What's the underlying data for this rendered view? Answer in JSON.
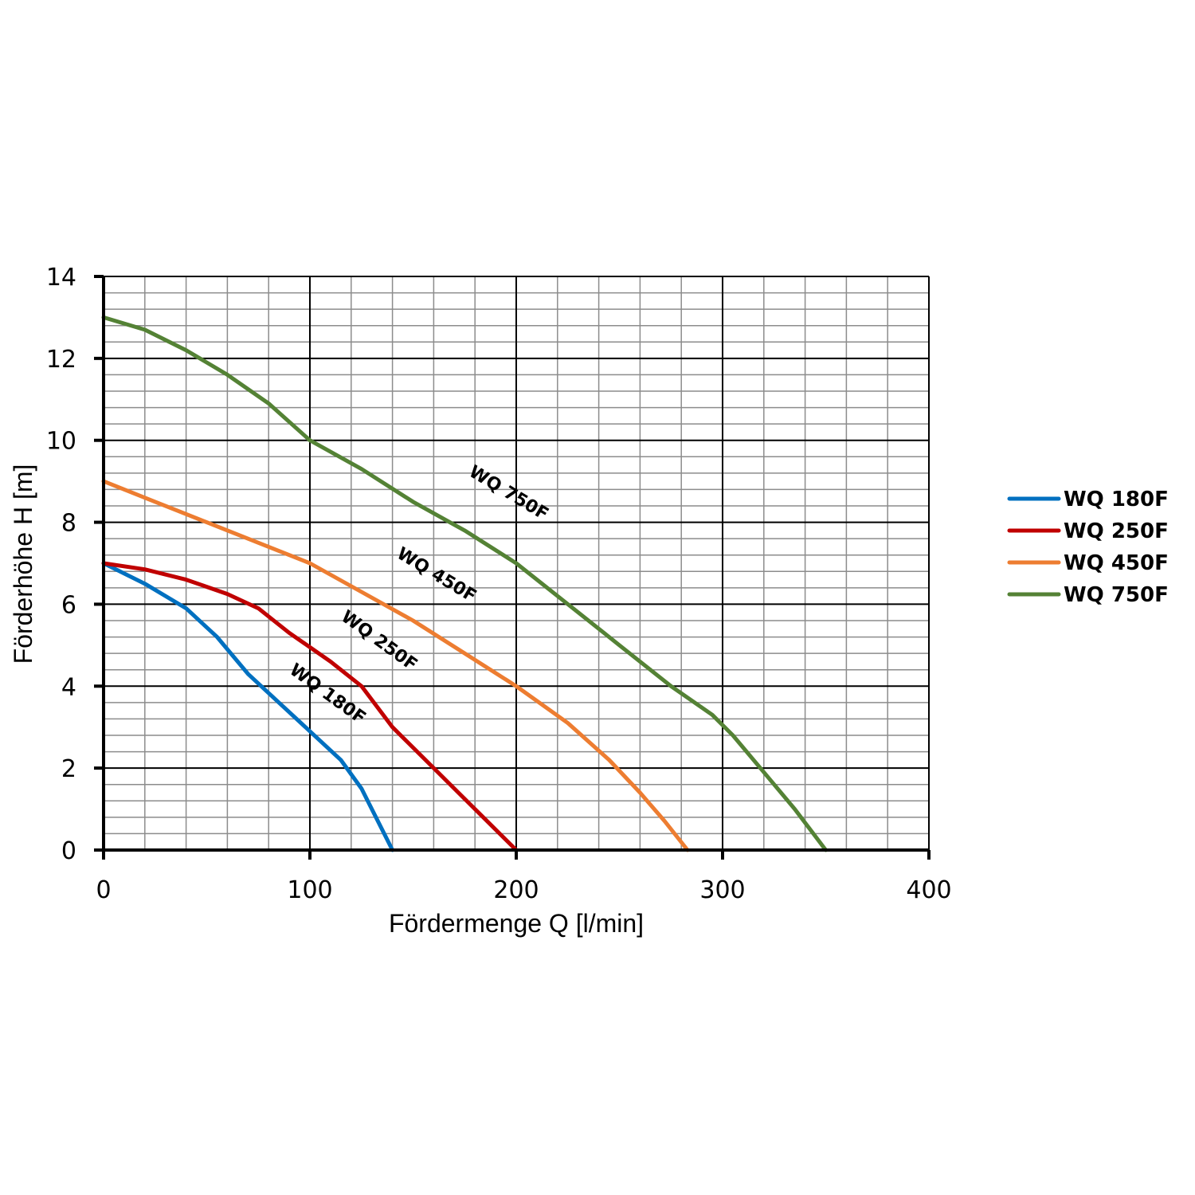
{
  "chart_data": {
    "type": "line",
    "xlabel": "Fördermenge Q [l/min]",
    "ylabel": "Förderhöhe H [m]",
    "xlim": [
      0,
      400
    ],
    "ylim": [
      0,
      14
    ],
    "x_major_ticks": [
      0,
      100,
      200,
      300,
      400
    ],
    "y_major_ticks": [
      0,
      2,
      4,
      6,
      8,
      10,
      12,
      14
    ],
    "x_minor_step": 20,
    "y_minor_step": 0.4,
    "grid": true,
    "legend_position": "right",
    "series": [
      {
        "name": "WQ 180F",
        "color": "#0070C0",
        "points": [
          [
            0,
            7
          ],
          [
            20,
            6.5
          ],
          [
            40,
            5.9
          ],
          [
            55,
            5.2
          ],
          [
            70,
            4.3
          ],
          [
            85,
            3.6
          ],
          [
            100,
            2.9
          ],
          [
            115,
            2.2
          ],
          [
            125,
            1.5
          ],
          [
            132,
            0.8
          ],
          [
            140,
            0
          ]
        ]
      },
      {
        "name": "WQ 250F",
        "color": "#C00000",
        "points": [
          [
            0,
            7
          ],
          [
            20,
            6.85
          ],
          [
            40,
            6.6
          ],
          [
            60,
            6.25
          ],
          [
            75,
            5.9
          ],
          [
            90,
            5.3
          ],
          [
            110,
            4.6
          ],
          [
            125,
            4
          ],
          [
            140,
            3
          ],
          [
            160,
            2
          ],
          [
            180,
            1
          ],
          [
            200,
            0
          ]
        ]
      },
      {
        "name": "WQ 450F",
        "color": "#ED7D31",
        "points": [
          [
            0,
            9
          ],
          [
            25,
            8.5
          ],
          [
            50,
            8
          ],
          [
            75,
            7.5
          ],
          [
            100,
            7
          ],
          [
            125,
            6.3
          ],
          [
            150,
            5.6
          ],
          [
            175,
            4.8
          ],
          [
            200,
            4
          ],
          [
            225,
            3.1
          ],
          [
            245,
            2.2
          ],
          [
            260,
            1.4
          ],
          [
            272,
            0.7
          ],
          [
            283,
            0
          ]
        ]
      },
      {
        "name": "WQ 750F",
        "color": "#548235",
        "points": [
          [
            0,
            13
          ],
          [
            20,
            12.7
          ],
          [
            40,
            12.2
          ],
          [
            60,
            11.6
          ],
          [
            80,
            10.9
          ],
          [
            100,
            10
          ],
          [
            125,
            9.3
          ],
          [
            150,
            8.5
          ],
          [
            175,
            7.8
          ],
          [
            200,
            7
          ],
          [
            225,
            6
          ],
          [
            250,
            5
          ],
          [
            275,
            4
          ],
          [
            295,
            3.3
          ],
          [
            305,
            2.8
          ],
          [
            320,
            1.9
          ],
          [
            335,
            1
          ],
          [
            350,
            0
          ]
        ]
      }
    ],
    "annotations": [
      {
        "text": "WQ 180F",
        "x": 107,
        "y": 3.7,
        "angle": 36
      },
      {
        "text": "WQ 250F",
        "x": 132,
        "y": 5.0,
        "angle": 36
      },
      {
        "text": "WQ 450F",
        "x": 160,
        "y": 6.6,
        "angle": 31
      },
      {
        "text": "WQ 750F",
        "x": 195,
        "y": 8.6,
        "angle": 31
      }
    ]
  }
}
